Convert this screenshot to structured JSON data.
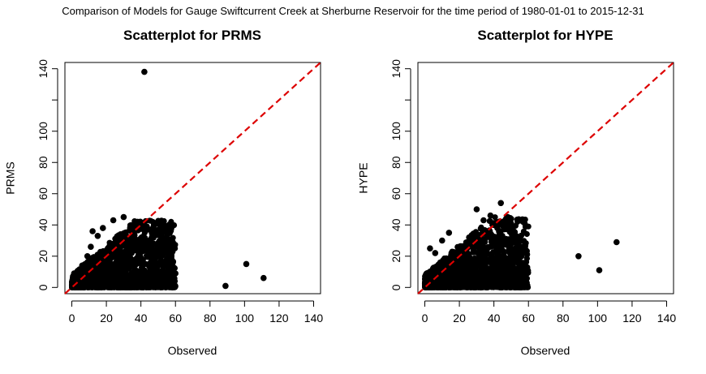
{
  "figure_title": "Comparison of Models for Gauge Swiftcurrent Creek at Sherburne Reservoir for the time period of 1980-01-01 to 2015-12-31",
  "chart_data": [
    {
      "type": "scatter",
      "title": "Scatterplot for PRMS",
      "xlabel": "Observed",
      "ylabel": "PRMS",
      "xlim": [
        -4,
        144
      ],
      "ylim": [
        -4,
        144
      ],
      "xticks": [
        0,
        20,
        40,
        60,
        80,
        100,
        120,
        140
      ],
      "yticks": [
        0,
        20,
        40,
        60,
        80,
        100,
        140
      ],
      "yticks_unlabeled": [
        120
      ],
      "grid": false,
      "reference_line": {
        "from": [
          -4,
          -4
        ],
        "to": [
          144,
          144
        ],
        "color": "#dd0000",
        "style": "dashed"
      },
      "point_color": "#000000",
      "points": [
        [
          42,
          138
        ],
        [
          30,
          45
        ],
        [
          24,
          43
        ],
        [
          38,
          42
        ],
        [
          41,
          41
        ],
        [
          35,
          39
        ],
        [
          44,
          37
        ],
        [
          48,
          34
        ],
        [
          52,
          31
        ],
        [
          45,
          30
        ],
        [
          50,
          24
        ],
        [
          55,
          18
        ],
        [
          57,
          10
        ],
        [
          60,
          9
        ],
        [
          56,
          4
        ],
        [
          58,
          2
        ],
        [
          47,
          6
        ],
        [
          53,
          3
        ],
        [
          12,
          36
        ],
        [
          15,
          33
        ],
        [
          18,
          38
        ],
        [
          9,
          20
        ],
        [
          11,
          26
        ],
        [
          6,
          14
        ],
        [
          89,
          1
        ],
        [
          101,
          15
        ],
        [
          111,
          6
        ]
      ],
      "dense_cloud": {
        "x_range": [
          0,
          60
        ],
        "y_range": [
          0,
          43
        ],
        "density": "very dense near origin"
      }
    },
    {
      "type": "scatter",
      "title": "Scatterplot for HYPE",
      "xlabel": "Observed",
      "ylabel": "HYPE",
      "xlim": [
        -4,
        144
      ],
      "ylim": [
        -4,
        144
      ],
      "xticks": [
        0,
        20,
        40,
        60,
        80,
        100,
        120,
        140
      ],
      "yticks": [
        0,
        20,
        40,
        60,
        80,
        100,
        140
      ],
      "yticks_unlabeled": [
        120
      ],
      "grid": false,
      "reference_line": {
        "from": [
          -4,
          -4
        ],
        "to": [
          144,
          144
        ],
        "color": "#dd0000",
        "style": "dashed"
      },
      "point_color": "#000000",
      "points": [
        [
          44,
          54
        ],
        [
          30,
          50
        ],
        [
          38,
          46
        ],
        [
          48,
          45
        ],
        [
          34,
          43
        ],
        [
          40,
          40
        ],
        [
          42,
          38
        ],
        [
          50,
          28
        ],
        [
          53,
          24
        ],
        [
          56,
          20
        ],
        [
          58,
          12
        ],
        [
          57,
          6
        ],
        [
          59,
          3
        ],
        [
          55,
          1
        ],
        [
          47,
          14
        ],
        [
          45,
          20
        ],
        [
          3,
          25
        ],
        [
          6,
          22
        ],
        [
          10,
          30
        ],
        [
          14,
          35
        ],
        [
          89,
          20
        ],
        [
          101,
          11
        ],
        [
          111,
          29
        ]
      ],
      "dense_cloud": {
        "x_range": [
          0,
          60
        ],
        "y_range": [
          0,
          45
        ],
        "density": "very dense near origin"
      }
    }
  ]
}
